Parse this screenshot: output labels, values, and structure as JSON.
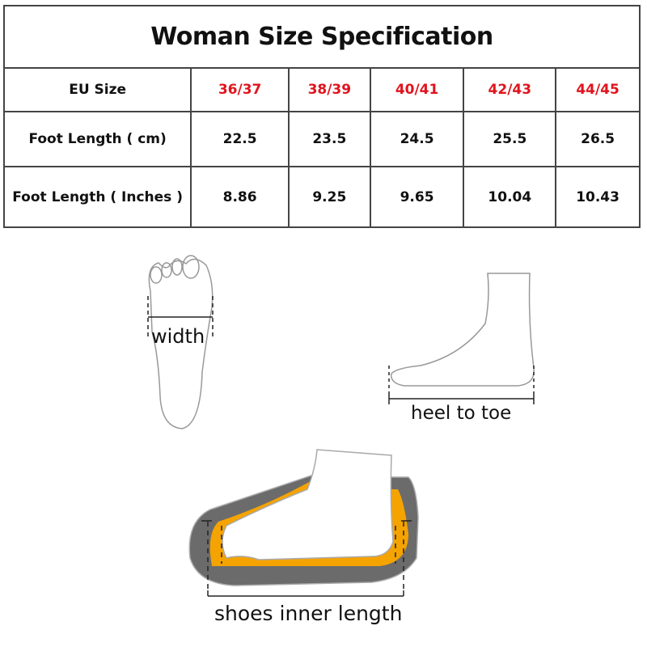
{
  "title": "Woman Size Specification",
  "header": {
    "label": "EU Size",
    "sizes": [
      "36/37",
      "38/39",
      "40/41",
      "42/43",
      "44/45"
    ]
  },
  "rows": [
    {
      "label": "Foot Length ( cm)",
      "values": [
        "22.5",
        "23.5",
        "24.5",
        "25.5",
        "26.5"
      ]
    },
    {
      "label": "Foot Length ( Inches )",
      "values": [
        "8.86",
        "9.25",
        "9.65",
        "10.04",
        "10.43"
      ]
    }
  ],
  "diagrams": {
    "width": "width",
    "heel_to_toe": "heel to toe",
    "inner_length": "shoes inner length"
  },
  "colors": {
    "size_red": "#e0141e",
    "insole_orange": "#f5a300",
    "sole_gray": "#6b6b6b"
  }
}
